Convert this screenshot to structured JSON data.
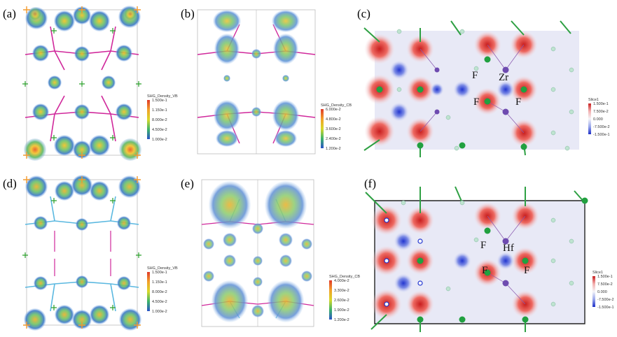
{
  "panels": [
    {
      "label": "(a)",
      "legend": {
        "title": "SHG_Density_VB",
        "ticks": [
          "1.500e-1",
          "1.150e-1",
          "8.000e-2",
          "4.500e-2",
          "1.000e-2"
        ]
      }
    },
    {
      "label": "(b)",
      "legend": {
        "title": "SHG_Density_CB",
        "ticks": [
          "6.000e-2",
          "4.800e-2",
          "3.600e-2",
          "2.400e-2",
          "1.200e-2"
        ]
      }
    },
    {
      "label": "(c)",
      "legend": {
        "title": "Slice1",
        "ticks": [
          "1.500e-1",
          "7.500e-2",
          "0.000",
          "-7.500e-2",
          "-1.500e-1"
        ]
      },
      "atoms": [
        "F",
        "Zr",
        "F",
        "F"
      ]
    },
    {
      "label": "(d)",
      "legend": {
        "title": "SHG_Density_VB",
        "ticks": [
          "1.500e-1",
          "1.150e-1",
          "8.000e-2",
          "4.500e-2",
          "1.000e-2"
        ]
      }
    },
    {
      "label": "(e)",
      "legend": {
        "title": "SHG_Density_CB",
        "ticks": [
          "4.000e-2",
          "3.300e-2",
          "2.600e-2",
          "1.900e-2",
          "1.200e-2"
        ]
      }
    },
    {
      "label": "(f)",
      "legend": {
        "title": "Slice1",
        "ticks": [
          "1.500e-1",
          "7.500e-2",
          "0.000",
          "-7.500e-2",
          "-1.500e-1"
        ]
      },
      "atoms": [
        "F",
        "Hf",
        "F",
        "F"
      ]
    }
  ],
  "colors": {
    "hot": "#e0443a",
    "cold": "#2a3fd1",
    "bond_a": "#d0289b",
    "bond_d": "#5ab8e0",
    "green": "#2ca02c",
    "orange": "#f29a2e"
  }
}
